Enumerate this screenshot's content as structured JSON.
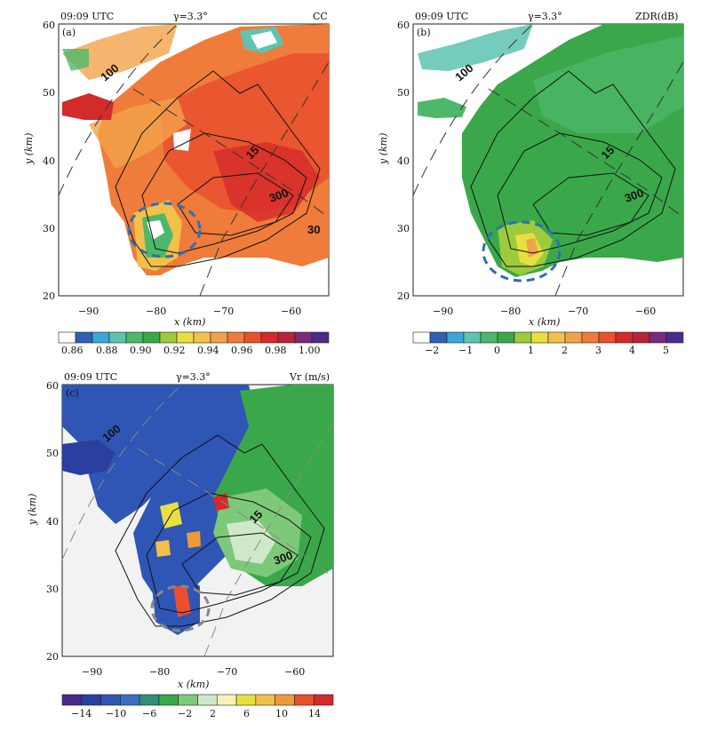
{
  "panels": [
    {
      "id": "a",
      "tag": "(a)",
      "time": "09:09 UTC",
      "elevation": "γ=3.3°",
      "field": "CC",
      "xticks": [
        "−90",
        "−80",
        "−70",
        "−60"
      ],
      "yticks": [
        "20",
        "30",
        "40",
        "50",
        "60"
      ],
      "xlabel": "x (km)",
      "ylabel": "y (km)",
      "range_labels": [
        "100",
        "15",
        "300",
        "30"
      ],
      "colorbar": {
        "colors": [
          "#ffffff",
          "#2f5fb0",
          "#3aa7d8",
          "#5ec3b0",
          "#4eb86a",
          "#3aa84a",
          "#9ccc3c",
          "#e8e040",
          "#f3c04a",
          "#f2a34a",
          "#ef7c3a",
          "#e8502e",
          "#d42a2a",
          "#b8233a",
          "#7a2a7a",
          "#4b2a8a"
        ],
        "labels": [
          "0.86",
          "0.88",
          "0.90",
          "0.92",
          "0.94",
          "0.96",
          "0.98",
          "1.00"
        ]
      }
    },
    {
      "id": "b",
      "tag": "(b)",
      "time": "09:09 UTC",
      "elevation": "γ=3.3°",
      "field": "ZDR(dB)",
      "xticks": [
        "−90",
        "−80",
        "−70",
        "−60"
      ],
      "yticks": [
        "20",
        "30",
        "40",
        "50",
        "60"
      ],
      "xlabel": "x (km)",
      "ylabel": "y (km)",
      "range_labels": [
        "100",
        "15",
        "300"
      ],
      "colorbar": {
        "colors": [
          "#ffffff",
          "#2f5fb0",
          "#3aa7d8",
          "#5ec3b0",
          "#4eb86a",
          "#3aa84a",
          "#9ccc3c",
          "#e8e040",
          "#f3c04a",
          "#f2a34a",
          "#ef7c3a",
          "#e8502e",
          "#d42a2a",
          "#b8233a",
          "#7a2a7a",
          "#4b2a8a"
        ],
        "labels": [
          "−2",
          "−1",
          "0",
          "1",
          "2",
          "3",
          "4",
          "5"
        ]
      }
    },
    {
      "id": "c",
      "tag": "(c)",
      "time": "09:09 UTC",
      "elevation": "γ=3.3°",
      "field": "Vr (m/s)",
      "xticks": [
        "−90",
        "−80",
        "−70",
        "−60"
      ],
      "yticks": [
        "20",
        "30",
        "40",
        "50",
        "60"
      ],
      "xlabel": "x (km)",
      "ylabel": "y (km)",
      "range_labels": [
        "100",
        "15",
        "300"
      ],
      "colorbar": {
        "colors": [
          "#4b2a8a",
          "#2b3f9e",
          "#2f55b5",
          "#3a6fc4",
          "#2f8f7a",
          "#3aa84a",
          "#7ec87a",
          "#cfe9c8",
          "#f6f2b8",
          "#e8e040",
          "#f3c04a",
          "#ef9a3a",
          "#e8502e",
          "#d42a2a"
        ],
        "labels": [
          "−14",
          "−10",
          "−6",
          "−2",
          "2",
          "6",
          "10",
          "14"
        ]
      }
    }
  ],
  "colors": {
    "circle": "#2e6fb3",
    "circle_gray": "#888888",
    "background_c": "#f2f2f2"
  }
}
